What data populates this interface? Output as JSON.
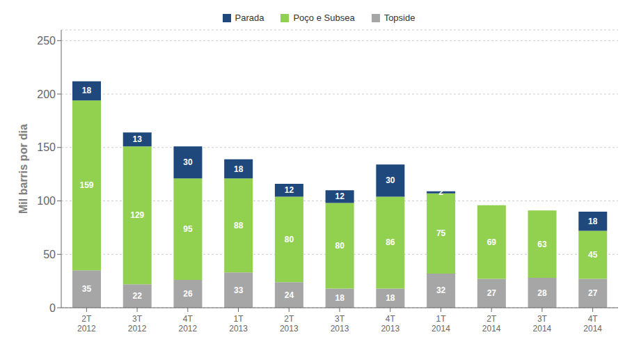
{
  "chart_data": {
    "type": "bar",
    "stacked": true,
    "ylabel": "Mil barris por dia",
    "categories": [
      "2T\n2012",
      "3T\n2012",
      "4T\n2012",
      "1T\n2013",
      "2T\n2013",
      "3T\n2013",
      "4T\n2013",
      "1T\n2014",
      "2T\n2014",
      "3T\n2014",
      "4T\n2014"
    ],
    "series": [
      {
        "name": "Topside",
        "color": "#a6a6a6",
        "values": [
          35,
          22,
          26,
          33,
          24,
          18,
          18,
          32,
          27,
          28,
          27
        ]
      },
      {
        "name": "Poço e Subsea",
        "color": "#92d050",
        "values": [
          159,
          129,
          95,
          88,
          80,
          80,
          86,
          75,
          69,
          63,
          45
        ]
      },
      {
        "name": "Parada",
        "color": "#1f497d",
        "values": [
          18,
          13,
          30,
          18,
          12,
          12,
          30,
          2,
          0,
          0,
          18
        ]
      }
    ],
    "ylim": [
      0,
      260
    ],
    "yticks": [
      0,
      50,
      100,
      150,
      200,
      250
    ],
    "grid": true,
    "legend": "top",
    "data_labels": true
  }
}
